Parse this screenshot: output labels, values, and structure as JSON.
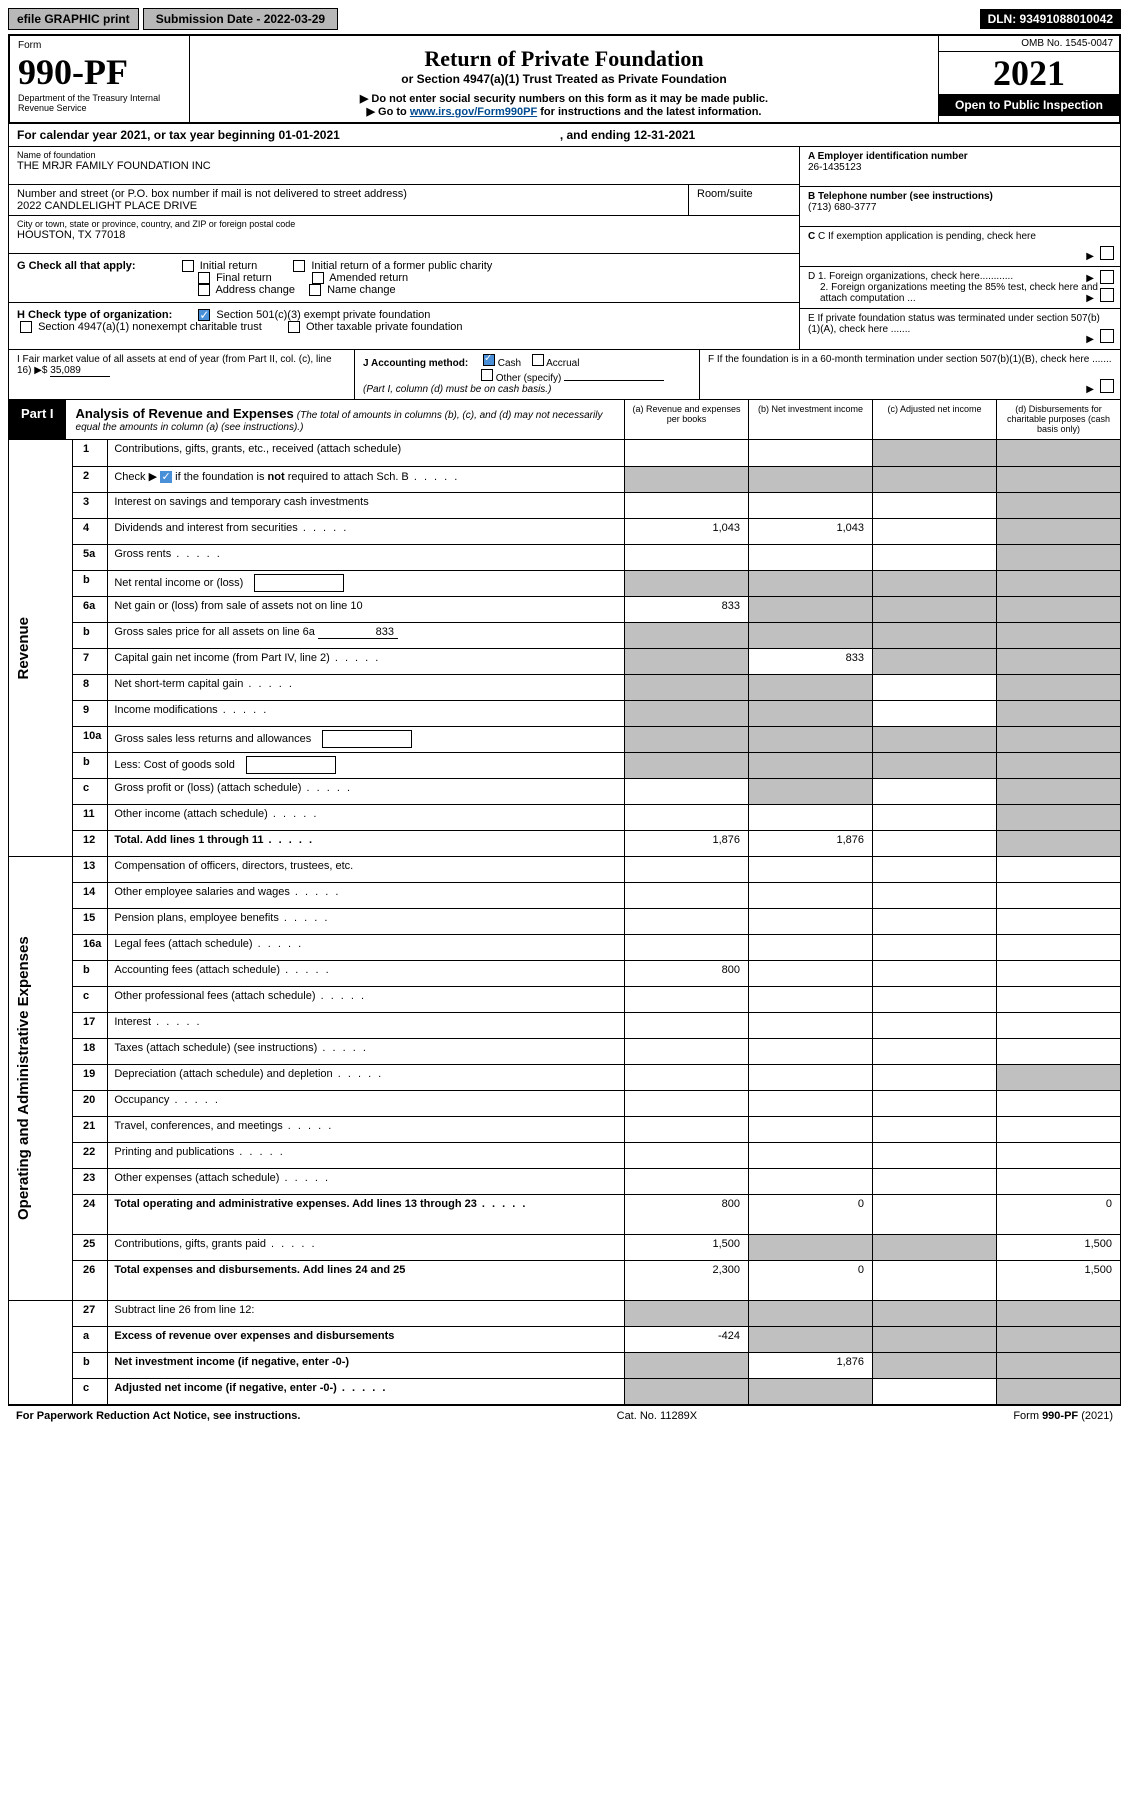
{
  "topbar": {
    "efile": "efile GRAPHIC print",
    "submission": "Submission Date - 2022-03-29",
    "dln": "DLN: 93491088010042"
  },
  "header": {
    "form": "Form",
    "form_no": "990-PF",
    "dept": "Department of the Treasury\nInternal Revenue Service",
    "omb": "OMB No. 1545-0047",
    "title": "Return of Private Foundation",
    "subtitle1": "or Section 4947(a)(1) Trust Treated as Private Foundation",
    "subtitle2a": "▶ Do not enter social security numbers on this form as it may be made public.",
    "subtitle2b": "▶ Go to ",
    "link": "www.irs.gov/Form990PF",
    "subtitle2c": " for instructions and the latest information.",
    "year": "2021",
    "open": "Open to Public Inspection"
  },
  "calendar": {
    "text": "For calendar year 2021, or tax year beginning 01-01-2021",
    "ending": ", and ending 12-31-2021"
  },
  "foundation": {
    "name_label": "Name of foundation",
    "name": "THE MRJR FAMILY FOUNDATION INC",
    "addr_label": "Number and street (or P.O. box number if mail is not delivered to street address)",
    "addr": "2022 CANDLELIGHT PLACE DRIVE",
    "room_label": "Room/suite",
    "city_label": "City or town, state or province, country, and ZIP or foreign postal code",
    "city": "HOUSTON, TX  77018"
  },
  "right_info": {
    "a_label": "A Employer identification number",
    "a_val": "26-1435123",
    "b_label": "B Telephone number (see instructions)",
    "b_val": "(713) 680-3777",
    "c_label": "C If exemption application is pending, check here",
    "d1": "D 1. Foreign organizations, check here............",
    "d2": "2. Foreign organizations meeting the 85% test, check here and attach computation ...",
    "e": "E  If private foundation status was terminated under section 507(b)(1)(A), check here .......",
    "f": "F  If the foundation is in a 60-month termination under section 507(b)(1)(B), check here ......."
  },
  "checks": {
    "g_label": "G Check all that apply:",
    "g_opts": [
      "Initial return",
      "Final return",
      "Address change",
      "Initial return of a former public charity",
      "Amended return",
      "Name change"
    ],
    "h_label": "H Check type of organization:",
    "h_opts": [
      "Section 501(c)(3) exempt private foundation",
      "Section 4947(a)(1) nonexempt charitable trust",
      "Other taxable private foundation"
    ],
    "i_label": "I Fair market value of all assets at end of year (from Part II, col. (c), line 16)",
    "i_val": "35,089",
    "j_label": "J Accounting method:",
    "j_opts": [
      "Cash",
      "Accrual",
      "Other (specify)"
    ],
    "j_note": "(Part I, column (d) must be on cash basis.)"
  },
  "part1": {
    "label": "Part I",
    "title": "Analysis of Revenue and Expenses",
    "note": "(The total of amounts in columns (b), (c), and (d) may not necessarily equal the amounts in column (a) (see instructions).)",
    "cols": {
      "a": "(a)  Revenue and expenses per books",
      "b": "(b)  Net investment income",
      "c": "(c)  Adjusted net income",
      "d": "(d)  Disbursements for charitable purposes (cash basis only)"
    }
  },
  "sides": {
    "rev": "Revenue",
    "ops": "Operating and Administrative Expenses"
  },
  "rows": [
    {
      "n": "1",
      "d": "Contributions, gifts, grants, etc., received (attach schedule)",
      "a": "",
      "b": "",
      "c": "grey",
      "dd": "grey"
    },
    {
      "n": "2",
      "d": "Check ▶ ☑ if the foundation is not required to attach Sch. B",
      "a": "grey",
      "b": "grey",
      "c": "grey",
      "dd": "grey",
      "bold_not": true,
      "dots": true
    },
    {
      "n": "3",
      "d": "Interest on savings and temporary cash investments",
      "a": "",
      "b": "",
      "c": "",
      "dd": "grey"
    },
    {
      "n": "4",
      "d": "Dividends and interest from securities",
      "a": "1,043",
      "b": "1,043",
      "c": "",
      "dd": "grey",
      "dots": true
    },
    {
      "n": "5a",
      "d": "Gross rents",
      "a": "",
      "b": "",
      "c": "",
      "dd": "grey",
      "dots": true
    },
    {
      "n": "b",
      "d": "Net rental income or (loss)",
      "a": "grey",
      "b": "grey",
      "c": "grey",
      "dd": "grey",
      "subbox": true
    },
    {
      "n": "6a",
      "d": "Net gain or (loss) from sale of assets not on line 10",
      "a": "833",
      "b": "grey",
      "c": "grey",
      "dd": "grey"
    },
    {
      "n": "b",
      "d": "Gross sales price for all assets on line 6a",
      "a": "grey",
      "b": "grey",
      "c": "grey",
      "dd": "grey",
      "subline": "833"
    },
    {
      "n": "7",
      "d": "Capital gain net income (from Part IV, line 2)",
      "a": "grey",
      "b": "833",
      "c": "grey",
      "dd": "grey",
      "dots": true
    },
    {
      "n": "8",
      "d": "Net short-term capital gain",
      "a": "grey",
      "b": "grey",
      "c": "",
      "dd": "grey",
      "dots": true
    },
    {
      "n": "9",
      "d": "Income modifications",
      "a": "grey",
      "b": "grey",
      "c": "",
      "dd": "grey",
      "dots": true
    },
    {
      "n": "10a",
      "d": "Gross sales less returns and allowances",
      "a": "grey",
      "b": "grey",
      "c": "grey",
      "dd": "grey",
      "subbox": true
    },
    {
      "n": "b",
      "d": "Less: Cost of goods sold",
      "a": "grey",
      "b": "grey",
      "c": "grey",
      "dd": "grey",
      "subbox": true,
      "dots": true
    },
    {
      "n": "c",
      "d": "Gross profit or (loss) (attach schedule)",
      "a": "",
      "b": "grey",
      "c": "",
      "dd": "grey",
      "dots": true
    },
    {
      "n": "11",
      "d": "Other income (attach schedule)",
      "a": "",
      "b": "",
      "c": "",
      "dd": "grey",
      "dots": true
    },
    {
      "n": "12",
      "d": "Total. Add lines 1 through 11",
      "a": "1,876",
      "b": "1,876",
      "c": "",
      "dd": "grey",
      "bold": true,
      "dots": true
    }
  ],
  "exp_rows": [
    {
      "n": "13",
      "d": "Compensation of officers, directors, trustees, etc.",
      "a": "",
      "b": "",
      "c": "",
      "dd": ""
    },
    {
      "n": "14",
      "d": "Other employee salaries and wages",
      "a": "",
      "b": "",
      "c": "",
      "dd": "",
      "dots": true
    },
    {
      "n": "15",
      "d": "Pension plans, employee benefits",
      "a": "",
      "b": "",
      "c": "",
      "dd": "",
      "dots": true
    },
    {
      "n": "16a",
      "d": "Legal fees (attach schedule)",
      "a": "",
      "b": "",
      "c": "",
      "dd": "",
      "dots": true
    },
    {
      "n": "b",
      "d": "Accounting fees (attach schedule)",
      "a": "800",
      "b": "",
      "c": "",
      "dd": "",
      "dots": true
    },
    {
      "n": "c",
      "d": "Other professional fees (attach schedule)",
      "a": "",
      "b": "",
      "c": "",
      "dd": "",
      "dots": true
    },
    {
      "n": "17",
      "d": "Interest",
      "a": "",
      "b": "",
      "c": "",
      "dd": "",
      "dots": true
    },
    {
      "n": "18",
      "d": "Taxes (attach schedule) (see instructions)",
      "a": "",
      "b": "",
      "c": "",
      "dd": "",
      "dots": true
    },
    {
      "n": "19",
      "d": "Depreciation (attach schedule) and depletion",
      "a": "",
      "b": "",
      "c": "",
      "dd": "grey",
      "dots": true
    },
    {
      "n": "20",
      "d": "Occupancy",
      "a": "",
      "b": "",
      "c": "",
      "dd": "",
      "dots": true
    },
    {
      "n": "21",
      "d": "Travel, conferences, and meetings",
      "a": "",
      "b": "",
      "c": "",
      "dd": "",
      "dots": true
    },
    {
      "n": "22",
      "d": "Printing and publications",
      "a": "",
      "b": "",
      "c": "",
      "dd": "",
      "dots": true
    },
    {
      "n": "23",
      "d": "Other expenses (attach schedule)",
      "a": "",
      "b": "",
      "c": "",
      "dd": "",
      "dots": true
    },
    {
      "n": "24",
      "d": "Total operating and administrative expenses. Add lines 13 through 23",
      "a": "800",
      "b": "0",
      "c": "",
      "dd": "0",
      "bold": true,
      "dots": true,
      "tall": true
    },
    {
      "n": "25",
      "d": "Contributions, gifts, grants paid",
      "a": "1,500",
      "b": "grey",
      "c": "grey",
      "dd": "1,500",
      "dots": true
    },
    {
      "n": "26",
      "d": "Total expenses and disbursements. Add lines 24 and 25",
      "a": "2,300",
      "b": "0",
      "c": "",
      "dd": "1,500",
      "bold": true,
      "tall": true
    }
  ],
  "bottom_rows": [
    {
      "n": "27",
      "d": "Subtract line 26 from line 12:",
      "a": "grey",
      "b": "grey",
      "c": "grey",
      "dd": "grey"
    },
    {
      "n": "a",
      "d": "Excess of revenue over expenses and disbursements",
      "a": "-424",
      "b": "grey",
      "c": "grey",
      "dd": "grey",
      "bold": true
    },
    {
      "n": "b",
      "d": "Net investment income (if negative, enter -0-)",
      "a": "grey",
      "b": "1,876",
      "c": "grey",
      "dd": "grey",
      "bold": true
    },
    {
      "n": "c",
      "d": "Adjusted net income (if negative, enter -0-)",
      "a": "grey",
      "b": "grey",
      "c": "",
      "dd": "grey",
      "bold": true,
      "dots": true
    }
  ],
  "footer": {
    "left": "For Paperwork Reduction Act Notice, see instructions.",
    "mid": "Cat. No. 11289X",
    "right": "Form 990-PF (2021)"
  }
}
